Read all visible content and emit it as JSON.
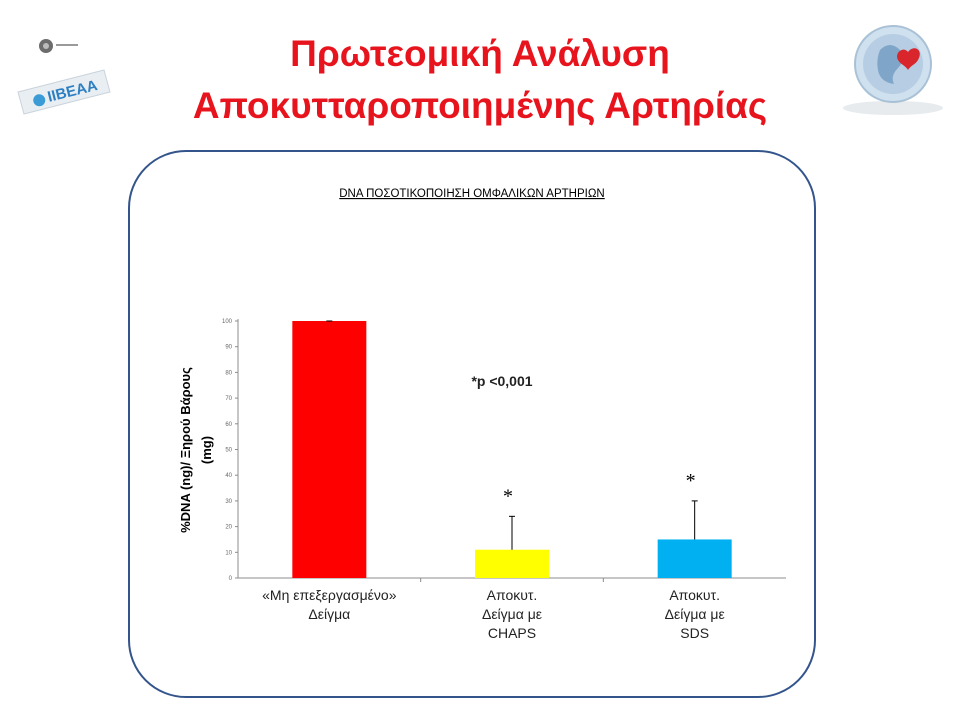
{
  "slide": {
    "title_line1": "Πρωτεομική Ανάλυση",
    "title_line2": "Αποκυτταροποιημένης Αρτηρίας",
    "title_color": "#e8141d",
    "frame_color": "#34558c",
    "logo_left_text": "IIBEAA"
  },
  "chart_data": {
    "type": "bar",
    "title": "DNA ΠΟΣΟΤΙΚΟΠΟΙΗΣΗ ΟΜΦΑΛΙΚΩΝ ΑΡΤΗΡΙΩΝ",
    "ylabel_line1": "%DNA (ng)/ Ξηρού Βάρους",
    "ylabel_line2": "(mg)",
    "ylim": [
      0,
      100
    ],
    "yticks": [
      "0",
      "10",
      "20",
      "30",
      "40",
      "50",
      "60",
      "70",
      "80",
      "90",
      "100"
    ],
    "categories": [
      {
        "lines": [
          "«Μη επεξεργασμένο»",
          "Δείγμα"
        ]
      },
      {
        "lines": [
          "Αποκυτ.",
          "Δείγμα με",
          "CHAPS"
        ]
      },
      {
        "lines": [
          "Αποκυτ.",
          "Δείγμα με",
          "SDS"
        ]
      }
    ],
    "values": [
      100,
      11,
      15
    ],
    "error_upper": [
      100,
      24,
      30
    ],
    "bar_colors": [
      "#ff0000",
      "#ffff00",
      "#00b0f0"
    ],
    "significance": [
      "",
      "*",
      "*"
    ],
    "annotation": "*p <0,001",
    "grid": false,
    "legend": "none"
  }
}
